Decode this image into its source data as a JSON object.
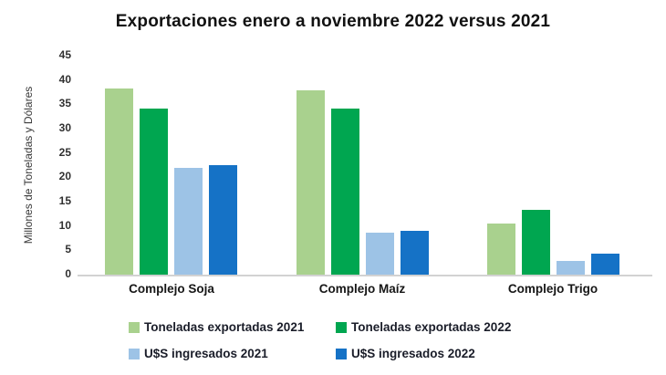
{
  "title": "Exportaciones enero a noviembre 2022 versus 2021",
  "chart_data": {
    "type": "bar",
    "title": "Exportaciones enero a noviembre 2022 versus 2021",
    "xlabel": "",
    "ylabel": "Millones de Toneladas y Dólares",
    "ylim": [
      0,
      45
    ],
    "yticks": [
      0,
      5,
      10,
      15,
      20,
      25,
      30,
      35,
      40,
      45
    ],
    "grid": false,
    "legend_position": "bottom",
    "categories": [
      "Complejo Soja",
      "Complejo Maíz",
      "Complejo Trigo"
    ],
    "series": [
      {
        "name": "Toneladas exportadas 2021",
        "color": "#a9d18e",
        "values": [
          38.2,
          37.8,
          10.5
        ]
      },
      {
        "name": "Toneladas exportadas 2022",
        "color": "#00a650",
        "values": [
          34.2,
          34.2,
          13.4
        ]
      },
      {
        "name": "U$S ingresados 2021",
        "color": "#9dc3e6",
        "values": [
          21.9,
          8.7,
          2.9
        ]
      },
      {
        "name": "U$S ingresados 2022",
        "color": "#1572c6",
        "values": [
          22.5,
          9.0,
          4.4
        ]
      }
    ]
  }
}
